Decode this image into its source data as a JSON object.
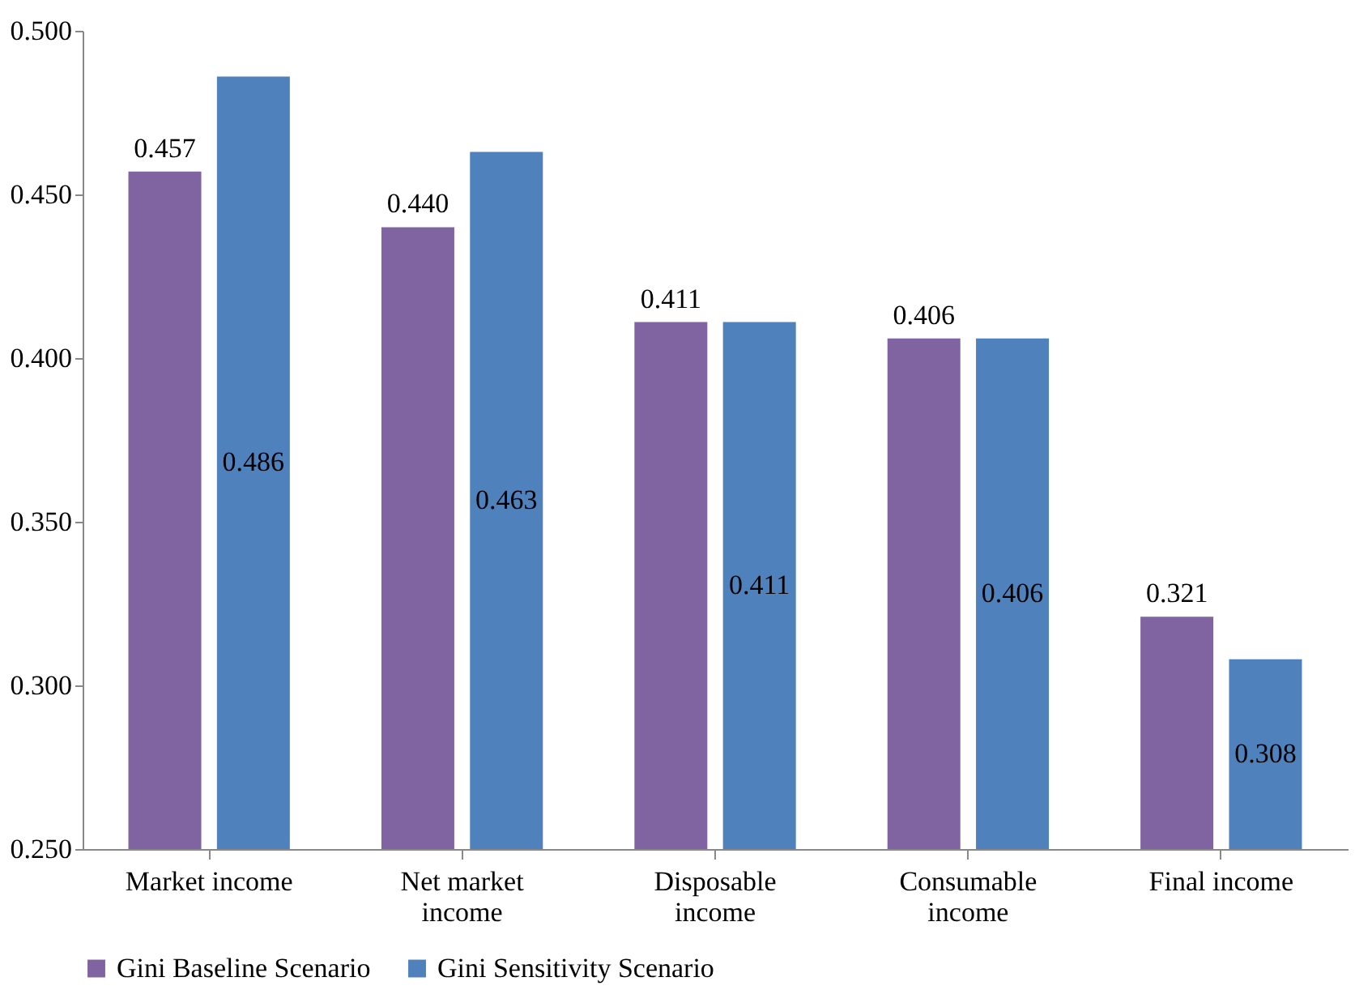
{
  "chart_data": {
    "type": "bar",
    "categories": [
      "Market income",
      "Net market income",
      "Disposable income",
      "Consumable income",
      "Final income"
    ],
    "series": [
      {
        "name": "Gini Baseline Scenario",
        "color": "#8064a2",
        "values": [
          0.457,
          0.44,
          0.411,
          0.406,
          0.321
        ],
        "value_labels": [
          "0.457",
          "0.440",
          "0.411",
          "0.406",
          "0.321"
        ]
      },
      {
        "name": "Gini Sensitivity Scenario",
        "color": "#4f81bd",
        "values": [
          0.486,
          0.463,
          0.411,
          0.406,
          0.308
        ],
        "value_labels": [
          "0.486",
          "0.463",
          "0.411",
          "0.406",
          "0.308"
        ]
      }
    ],
    "ylim": [
      0.25,
      0.5
    ],
    "yticks": [
      {
        "value": 0.25,
        "label": "0.250"
      },
      {
        "value": 0.3,
        "label": "0.300"
      },
      {
        "value": 0.35,
        "label": "0.350"
      },
      {
        "value": 0.4,
        "label": "0.400"
      },
      {
        "value": 0.45,
        "label": "0.450"
      },
      {
        "value": 0.5,
        "label": "0.500"
      }
    ],
    "grid": false,
    "legend": "bottom"
  }
}
